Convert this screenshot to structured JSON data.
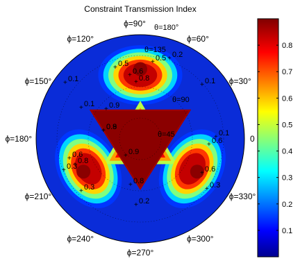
{
  "chart_data": {
    "type": "heatmap",
    "title": "Constraint Transmission Index",
    "projection": "polar",
    "phi_labels": [
      {
        "deg": 90,
        "text": "ϕ=90°"
      },
      {
        "deg": 60,
        "text": "ϕ=60°"
      },
      {
        "deg": 30,
        "text": "ϕ=30°"
      },
      {
        "deg": 0,
        "text": "0"
      },
      {
        "deg": 330,
        "text": "ϕ=330°"
      },
      {
        "deg": 300,
        "text": "ϕ=300°"
      },
      {
        "deg": 270,
        "text": "ϕ=270°"
      },
      {
        "deg": 240,
        "text": "ϕ=240°"
      },
      {
        "deg": 210,
        "text": "ϕ=210°"
      },
      {
        "deg": 180,
        "text": "ϕ=180°"
      },
      {
        "deg": 150,
        "text": "ϕ=150°"
      },
      {
        "deg": 120,
        "text": "ϕ=120°"
      }
    ],
    "theta_labels": [
      "θ=180°",
      "θ=135",
      "θ=90",
      "θ=45"
    ],
    "contour_labels": [
      "0.1",
      "0.2",
      "0.3",
      "0.5",
      "0.6",
      "0.8",
      "0.9"
    ],
    "colorbar": {
      "min": 0.0,
      "max": 0.9,
      "ticks": [
        0.1,
        0.2,
        0.3,
        0.4,
        0.5,
        0.6,
        0.7,
        0.8
      ],
      "colormap": "jet"
    },
    "grid": true
  }
}
